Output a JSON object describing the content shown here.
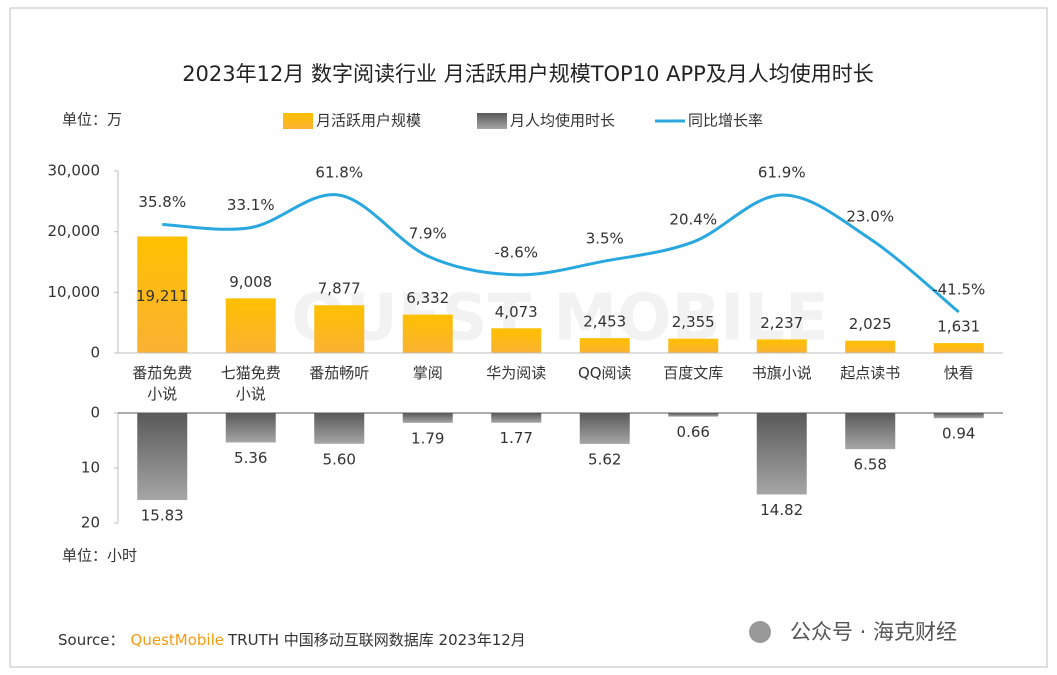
{
  "chart_data": {
    "type": "bar",
    "title": "2023年12月 数字阅读行业 月活跃用户规模TOP10 APP及月人均使用时长",
    "unit_top": "单位：万",
    "unit_bottom": "单位：小时",
    "categories": [
      "番茄免费小说",
      "七猫免费小说",
      "番茄畅听",
      "掌阅",
      "华为阅读",
      "QQ阅读",
      "百度文库",
      "书旗小说",
      "起点读书",
      "快看"
    ],
    "series": [
      {
        "name": "月活跃用户规模",
        "type": "bar",
        "color": "#ffc000",
        "values": [
          19211,
          9008,
          7877,
          6332,
          4073,
          2453,
          2355,
          2237,
          2025,
          1631
        ],
        "value_labels": [
          "19,211",
          "9,008",
          "7,877",
          "6,332",
          "4,073",
          "2,453",
          "2,355",
          "2,237",
          "2,025",
          "1,631"
        ]
      },
      {
        "name": "月人均使用时长",
        "type": "bar",
        "axis": "y2",
        "color": "#7f7f7f",
        "values": [
          15.83,
          5.36,
          5.6,
          1.79,
          1.77,
          5.62,
          0.66,
          14.82,
          6.58,
          0.94
        ],
        "value_labels": [
          "15.83",
          "5.36",
          "5.60",
          "1.79",
          "1.77",
          "5.62",
          "0.66",
          "14.82",
          "6.58",
          "0.94"
        ]
      },
      {
        "name": "同比增长率",
        "type": "line",
        "color": "#29a8e0",
        "values": [
          35.8,
          33.1,
          61.8,
          7.9,
          -8.6,
          3.5,
          20.4,
          61.9,
          23.0,
          -41.5
        ],
        "value_labels": [
          "35.8%",
          "33.1%",
          "61.8%",
          "7.9%",
          "-8.6%",
          "3.5%",
          "20.4%",
          "61.9%",
          "23.0%",
          "-41.5%"
        ]
      }
    ],
    "ylim": [
      0,
      30000
    ],
    "yticks": [
      0,
      {
        "value": 10000,
        "label": "10,000"
      },
      {
        "value": 20000,
        "label": "20,000"
      },
      {
        "value": 30000,
        "label": "30,000"
      }
    ],
    "y2lim": [
      0,
      20
    ],
    "y2ticks": [
      0,
      10,
      20
    ],
    "y2_inverted": true,
    "source_label": "Source：",
    "source_brand": "QuestMobile",
    "source_text": "TRUTH 中国移动互联网数据库 2023年12月",
    "logo_watermark": "QUEST MOBILE",
    "footer_watermark": "公众号 · 海克财经"
  }
}
